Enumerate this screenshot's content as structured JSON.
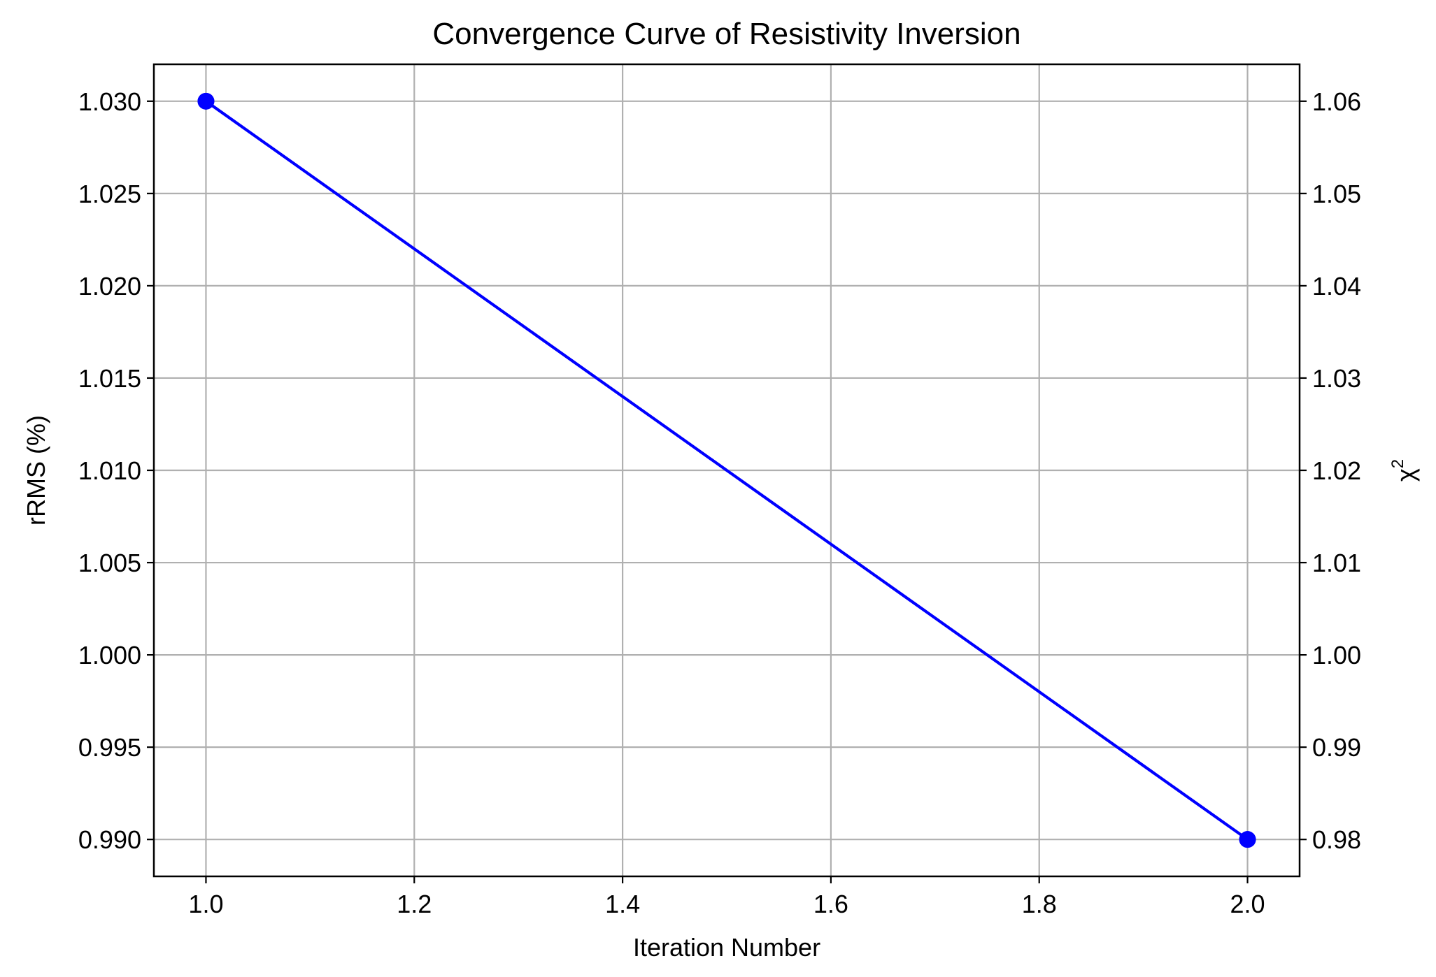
{
  "chart_data": {
    "type": "line",
    "title": "Convergence Curve of Resistivity Inversion",
    "xlabel": "Iteration Number",
    "ylabel": "rRMS (%)",
    "y2label": "χ",
    "y2label_sup": "2",
    "x": [
      1.0,
      2.0
    ],
    "xlim": [
      0.95,
      2.05
    ],
    "xticks": [
      "1.0",
      "1.2",
      "1.4",
      "1.6",
      "1.8",
      "2.0"
    ],
    "xtick_values": [
      1.0,
      1.2,
      1.4,
      1.6,
      1.8,
      2.0
    ],
    "ylim": [
      0.988,
      1.032
    ],
    "yticks": [
      "0.990",
      "0.995",
      "1.000",
      "1.005",
      "1.010",
      "1.015",
      "1.020",
      "1.025",
      "1.030"
    ],
    "ytick_values": [
      0.99,
      0.995,
      1.0,
      1.005,
      1.01,
      1.015,
      1.02,
      1.025,
      1.03
    ],
    "y2lim": [
      0.976,
      1.064
    ],
    "y2ticks": [
      "0.98",
      "0.99",
      "1.00",
      "1.01",
      "1.02",
      "1.03",
      "1.04",
      "1.05",
      "1.06"
    ],
    "y2tick_values": [
      0.98,
      0.99,
      1.0,
      1.01,
      1.02,
      1.03,
      1.04,
      1.05,
      1.06
    ],
    "grid": true,
    "series": [
      {
        "axis": "left",
        "values": [
          1.03,
          0.99
        ],
        "color": "#0000ff",
        "marker": "circle"
      },
      {
        "axis": "right",
        "values": [
          1.06,
          0.98
        ],
        "color": "#0000ff",
        "marker": "circle"
      }
    ],
    "y2label_color": "#0000ff"
  }
}
